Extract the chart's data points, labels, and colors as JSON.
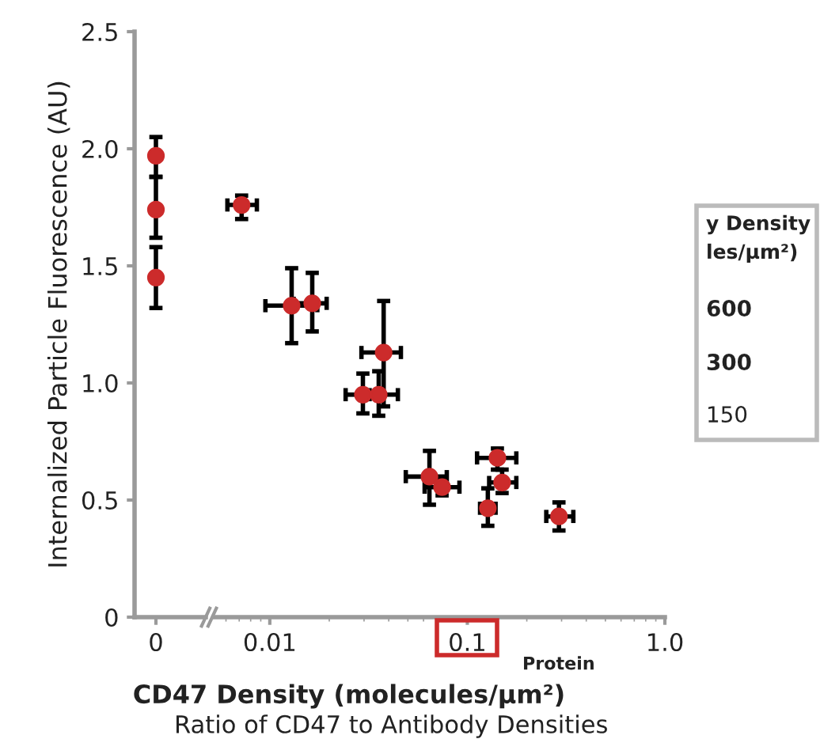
{
  "chart_data": [
    {
      "type": "scatter",
      "ylabel": "Internalized Particle Fluorescence (AU)",
      "categories": [
        "0"
      ],
      "ylim": [
        0,
        2.5
      ],
      "yticks": [
        {
          "value": 0,
          "label": "0"
        },
        {
          "value": 0.5,
          "label": "0.5"
        },
        {
          "value": 1.0,
          "label": "1.0"
        },
        {
          "value": 1.5,
          "label": "1.5"
        },
        {
          "value": 2.0,
          "label": "2.0"
        },
        {
          "value": 2.5,
          "label": "2.5"
        }
      ],
      "marker": "circle",
      "grid": false,
      "legend": false,
      "series": [
        {
          "color": "#cc2b2b",
          "x": [
            "0",
            "0",
            "0"
          ],
          "values": [
            1.97,
            1.74,
            1.45
          ],
          "errors": [
            [
              1.88,
              2.05
            ],
            [
              1.62,
              1.88
            ],
            [
              1.32,
              1.58
            ]
          ]
        }
      ]
    },
    {
      "type": "scatter",
      "xlabel": "CD47 Density (molecules/µm²)",
      "log": "x",
      "xlim": [
        0.0052,
        1.0
      ],
      "xticks": [
        0.01,
        0.1,
        {
          "value": 1.0,
          "label": "1.0"
        }
      ],
      "ylim": [
        0,
        2.5
      ],
      "tick_labels": "x",
      "marker": "circle",
      "grid": false,
      "legend": false,
      "annotations": [
        "Protein",
        "Ratio of CD47 to Antibody Densities",
        "y Density",
        "les/µm²)",
        "600",
        "300",
        "150"
      ],
      "series": [
        {
          "color": "#cc2b2b",
          "x": [
            0.0072,
            0.0129,
            0.0164,
            0.0377,
            0.0296,
            0.0356,
            0.0643,
            0.0745,
            0.142,
            0.15,
            0.127,
            0.291
          ],
          "values": [
            1.76,
            1.33,
            1.34,
            1.13,
            0.95,
            0.95,
            0.6,
            0.555,
            0.68,
            0.575,
            0.465,
            0.43
          ],
          "errors": [
            [
              1.7,
              1.8
            ],
            [
              1.17,
              1.49
            ],
            [
              1.22,
              1.47
            ],
            [
              0.9,
              1.35
            ],
            [
              0.87,
              1.04
            ],
            [
              0.86,
              1.05
            ],
            [
              0.48,
              0.71
            ],
            [
              0.52,
              0.59
            ],
            [
              0.63,
              0.72
            ],
            [
              0.53,
              0.63
            ],
            [
              0.39,
              0.55
            ],
            [
              0.37,
              0.49
            ]
          ],
          "xerrors": [
            [
              0.0061,
              0.0086
            ],
            [
              0.0095,
              0.0174
            ],
            [
              0.0132,
              0.0194
            ],
            [
              0.0291,
              0.0461
            ],
            [
              0.0242,
              0.0296
            ],
            [
              0.032,
              0.0445
            ],
            [
              0.0488,
              0.0787
            ],
            [
              0.0608,
              0.0912
            ],
            [
              0.112,
              0.177
            ],
            [
              0.129,
              0.177
            ],
            [
              0.116,
              0.139
            ],
            [
              0.251,
              0.344
            ]
          ]
        }
      ]
    }
  ]
}
